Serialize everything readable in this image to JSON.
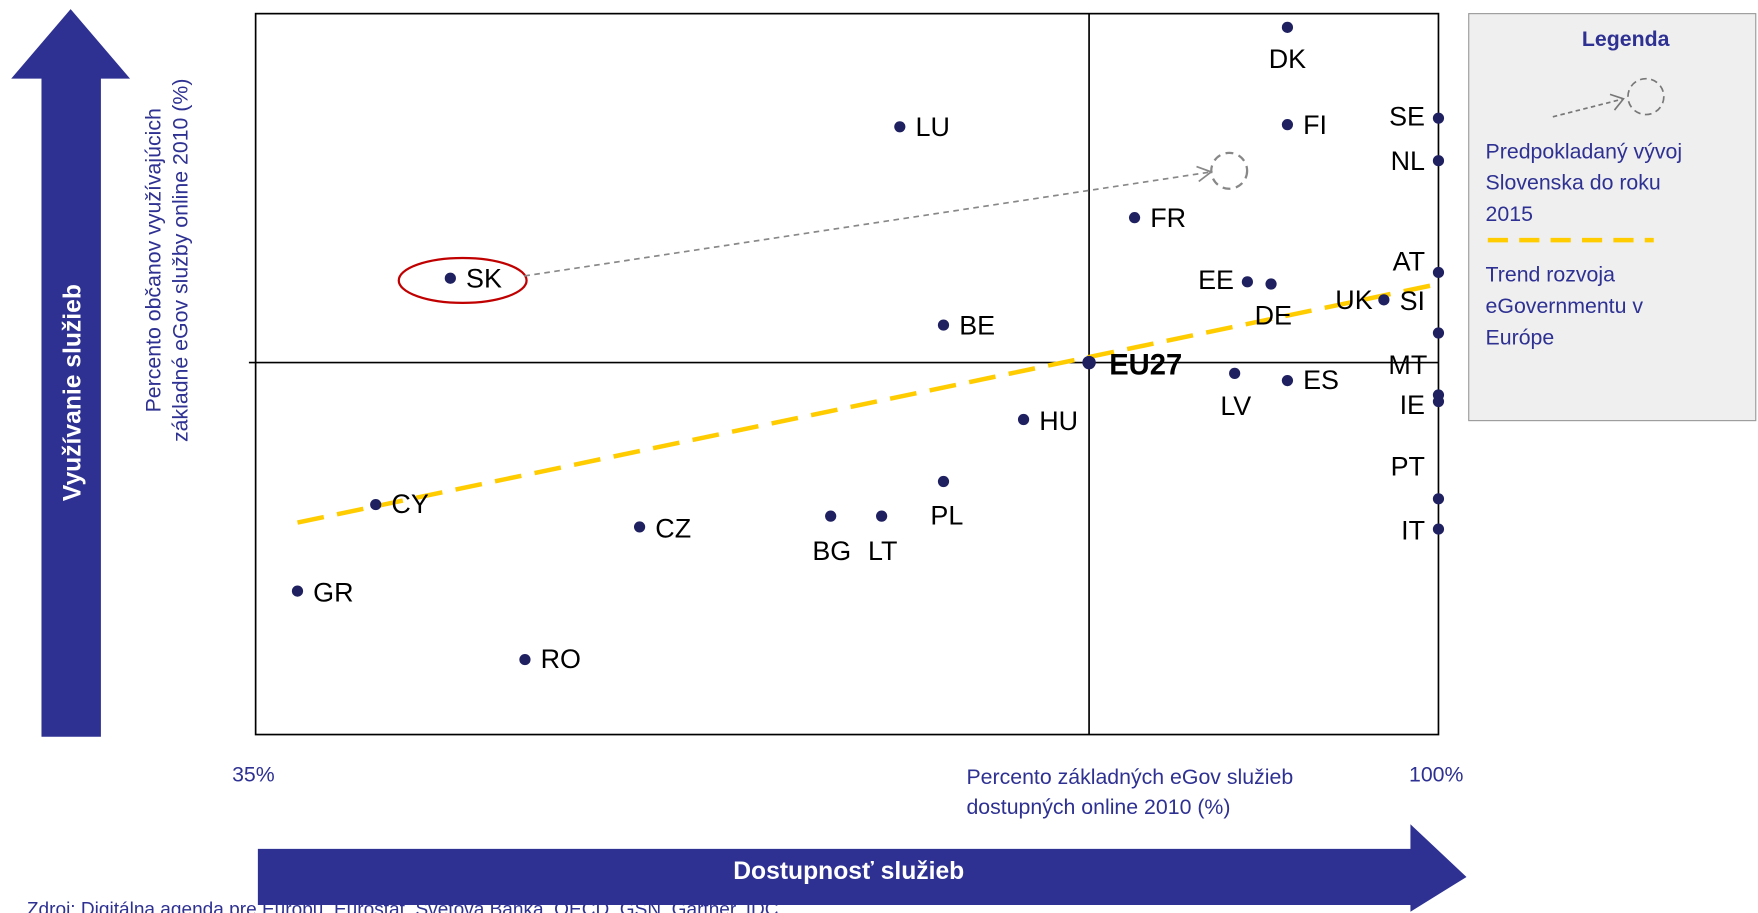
{
  "chart_data": {
    "type": "scatter",
    "title_y_arrow": "Využívanie služieb",
    "title_x_arrow": "Dostupnosť služieb",
    "y_label": [
      "Percento občanov  využívajúcich",
      "základné eGov služby online 2010 (%)"
    ],
    "x_label": [
      "Percento základných eGov služieb",
      "dostupných online 2010 (%)"
    ],
    "source": "Zdroj: Digitálna agenda pre Európu, Eurostat, Svetová Banka, OECD, GSN, Gartner, IDC",
    "labels": [
      "DK",
      "FI",
      "SE",
      "NL",
      "LU",
      "FR",
      "SK",
      "EE",
      "DE",
      "UK",
      "AT",
      "SI",
      "BE",
      "EU27",
      "MT",
      "IE",
      "PT",
      "IT",
      "LV",
      "ES",
      "HU",
      "PL",
      "BG",
      "LT",
      "CZ",
      "CY",
      "GR",
      "RO"
    ],
    "x": [
      91.7,
      91.7,
      100,
      100,
      70.4,
      83.3,
      45.7,
      89.5,
      90.8,
      97.0,
      100,
      100,
      72.8,
      80.8,
      100,
      100,
      100,
      100,
      88.8,
      91.7,
      77.2,
      72.8,
      66.6,
      69.4,
      56.1,
      41.6,
      37.3,
      49.8
    ],
    "y": [
      98.1,
      84.6,
      85.5,
      79.6,
      84.3,
      71.7,
      63.3,
      62.8,
      62.5,
      60.3,
      64.1,
      55.7,
      56.8,
      51.6,
      47.1,
      46.2,
      32.7,
      28.5,
      50.1,
      49.1,
      43.7,
      35.1,
      30.3,
      30.3,
      28.8,
      31.9,
      19.9,
      10.4
    ],
    "color": "#1f2060",
    "xlim": [
      35,
      100
    ],
    "ylim": [
      0,
      100
    ],
    "xticks": [
      {
        "value": 35,
        "label": "35%"
      },
      {
        "value": 100,
        "label": "100%"
      }
    ],
    "quadrant_lines": {
      "x": 80.8,
      "y": 51.6
    },
    "trend": {
      "x": [
        37.3,
        100
      ],
      "y": [
        29.4,
        62.5
      ],
      "color": "#ffcc00"
    },
    "projection": {
      "x": 88.5,
      "y": 78.2
    },
    "legend": {
      "title": "Legenda",
      "items": [
        [
          "Predpokladaný vývoj",
          "Slovenska do roku",
          "2015"
        ],
        [
          "Trend rozvoja",
          "eGovernmentu v",
          "Európe"
        ]
      ]
    }
  }
}
